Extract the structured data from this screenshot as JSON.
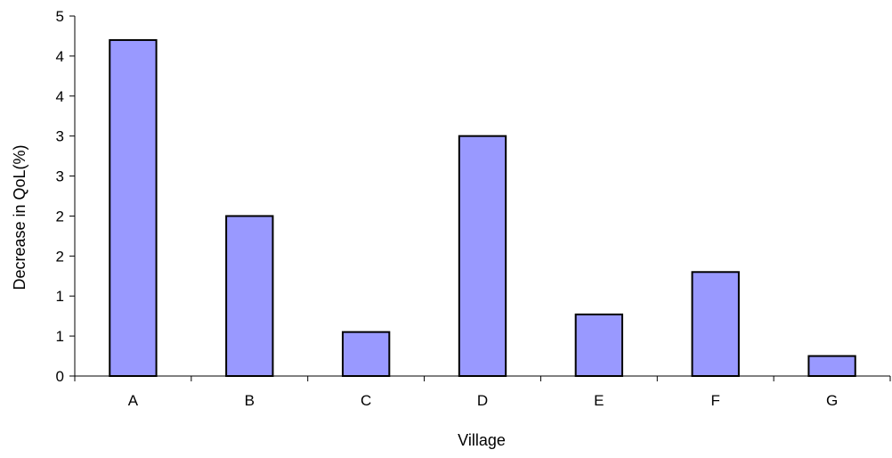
{
  "chart_data": {
    "type": "bar",
    "categories": [
      "A",
      "B",
      "C",
      "D",
      "E",
      "F",
      "G"
    ],
    "values": [
      4.2,
      2.0,
      0.55,
      3.0,
      0.77,
      1.3,
      0.25
    ],
    "y_tick_labels": [
      "0",
      "1",
      "1",
      "2",
      "2",
      "3",
      "3",
      "4",
      "4",
      "5"
    ],
    "ylim": [
      0,
      4.5
    ],
    "title": "",
    "xlabel": "Village",
    "ylabel": "Decrease in QoL(%)",
    "bar_color": "#9999ff",
    "bar_edge_color": "#000000",
    "grid": false,
    "legend": "none"
  }
}
